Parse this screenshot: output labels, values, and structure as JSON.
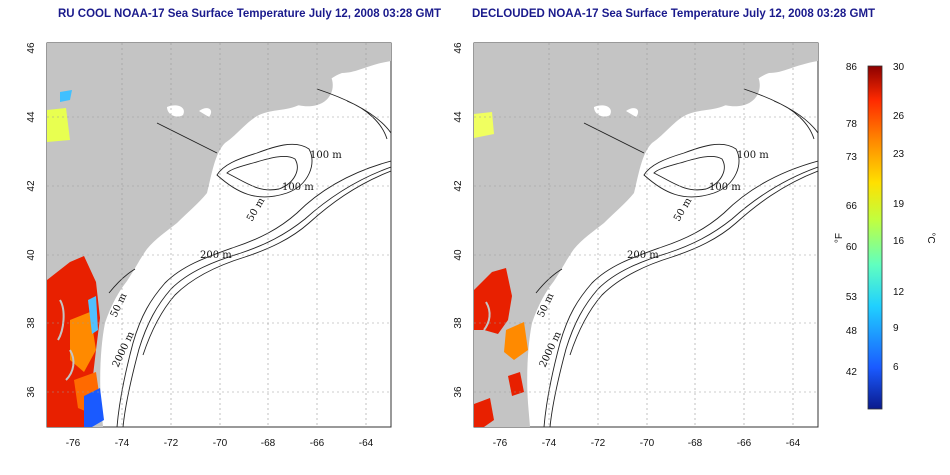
{
  "titles": {
    "left": "RU COOL NOAA-17 Sea Surface Temperature July 12, 2008 03:28 GMT",
    "right": "DECLOUDED NOAA-17 Sea Surface Temperature July 12, 2008 03:28 GMT"
  },
  "axes": {
    "lon_ticks": [
      -76,
      -74,
      -72,
      -70,
      -68,
      -66,
      -64
    ],
    "lat_ticks": [
      36,
      38,
      40,
      42,
      44,
      46
    ],
    "lon_range": [
      -77.2,
      -63.0
    ],
    "lat_range": [
      35.0,
      46.0
    ],
    "grid": "dotted"
  },
  "contour_labels": {
    "left": [
      "100 m",
      "100 m",
      "50 m",
      "200 m",
      "50 m",
      "2000 m"
    ],
    "right": [
      "100 m",
      "100 m",
      "50 m",
      "200 m",
      "50 m",
      "2000 m"
    ]
  },
  "colorbar": {
    "f_ticks": [
      "86",
      "78",
      "73",
      "66",
      "60",
      "53",
      "48",
      "42"
    ],
    "c_ticks": [
      "30",
      "26",
      "23",
      "19",
      "16",
      "12",
      "9",
      "6"
    ],
    "f_label": "°F",
    "c_label": "°C",
    "colors": [
      "#0a1a8c",
      "#1a5aff",
      "#20d0ff",
      "#60ffc0",
      "#c0ff40",
      "#ffe000",
      "#ff8a00",
      "#ff2a00",
      "#8c0000"
    ]
  },
  "colors": {
    "land": "#c4c4c4",
    "contour": "#222222",
    "title": "#1a1a8c"
  }
}
